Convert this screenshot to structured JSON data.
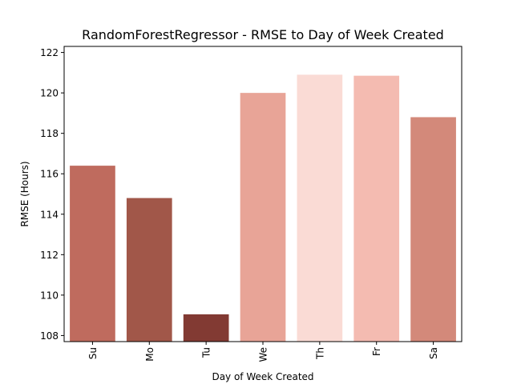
{
  "chart_data": {
    "type": "bar",
    "title": "RandomForestRegressor - RMSE to Day of Week Created",
    "xlabel": "Day of Week Created",
    "ylabel": "RMSE (Hours)",
    "categories": [
      "Su",
      "Mo",
      "Tu",
      "We",
      "Th",
      "Fr",
      "Sa"
    ],
    "values": [
      116.4,
      114.8,
      109.05,
      120.0,
      120.9,
      120.85,
      118.8
    ],
    "colors": [
      "#bf6b5e",
      "#a15749",
      "#823a33",
      "#e8a497",
      "#fadbd5",
      "#f4bbb1",
      "#d3897a"
    ],
    "ylim": [
      107.7,
      122.3
    ],
    "yticks": [
      108,
      110,
      112,
      114,
      116,
      118,
      120,
      122
    ],
    "grid": false,
    "legend": "none"
  }
}
